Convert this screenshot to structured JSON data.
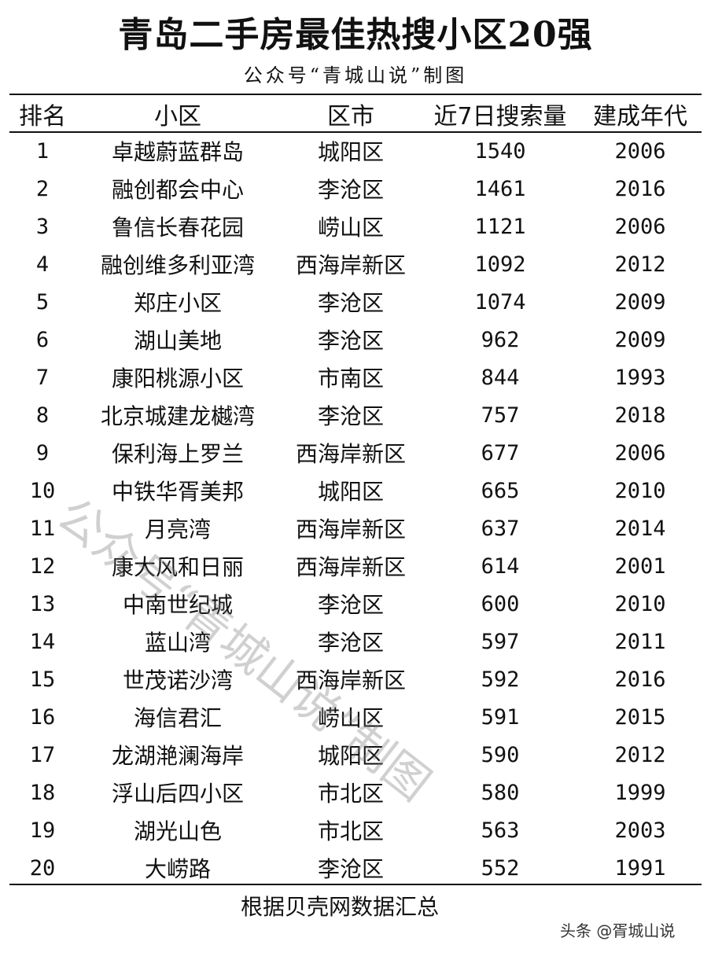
{
  "title": "青岛二手房最佳热搜小区20强",
  "subtitle": "公众号“青城山说”制图",
  "watermark_diagonal": "公众号“青城山说”制图",
  "table": {
    "headers": [
      "排名",
      "小区",
      "区市",
      "近7日搜索量",
      "建成年代"
    ],
    "rows": [
      [
        "1",
        "卓越蔚蓝群岛",
        "城阳区",
        "1540",
        "2006"
      ],
      [
        "2",
        "融创都会中心",
        "李沧区",
        "1461",
        "2016"
      ],
      [
        "3",
        "鲁信长春花园",
        "崂山区",
        "1121",
        "2006"
      ],
      [
        "4",
        "融创维多利亚湾",
        "西海岸新区",
        "1092",
        "2012"
      ],
      [
        "5",
        "郑庄小区",
        "李沧区",
        "1074",
        "2009"
      ],
      [
        "6",
        "湖山美地",
        "李沧区",
        "962",
        "2009"
      ],
      [
        "7",
        "康阳桃源小区",
        "市南区",
        "844",
        "1993"
      ],
      [
        "8",
        "北京城建龙樾湾",
        "李沧区",
        "757",
        "2018"
      ],
      [
        "9",
        "保利海上罗兰",
        "西海岸新区",
        "677",
        "2006"
      ],
      [
        "10",
        "中铁华胥美邦",
        "城阳区",
        "665",
        "2010"
      ],
      [
        "11",
        "月亮湾",
        "西海岸新区",
        "637",
        "2014"
      ],
      [
        "12",
        "康大风和日丽",
        "西海岸新区",
        "614",
        "2001"
      ],
      [
        "13",
        "中南世纪城",
        "李沧区",
        "600",
        "2010"
      ],
      [
        "14",
        "蓝山湾",
        "李沧区",
        "597",
        "2011"
      ],
      [
        "15",
        "世茂诺沙湾",
        "西海岸新区",
        "592",
        "2016"
      ],
      [
        "16",
        "海信君汇",
        "崂山区",
        "591",
        "2015"
      ],
      [
        "17",
        "龙湖滟澜海岸",
        "城阳区",
        "590",
        "2012"
      ],
      [
        "18",
        "浮山后四小区",
        "市北区",
        "580",
        "1999"
      ],
      [
        "19",
        "湖光山色",
        "市北区",
        "563",
        "2003"
      ],
      [
        "20",
        "大崂路",
        "李沧区",
        "552",
        "1991"
      ]
    ]
  },
  "source": "根据贝壳网数据汇总",
  "platform_watermark": "头条 @胥城山说"
}
